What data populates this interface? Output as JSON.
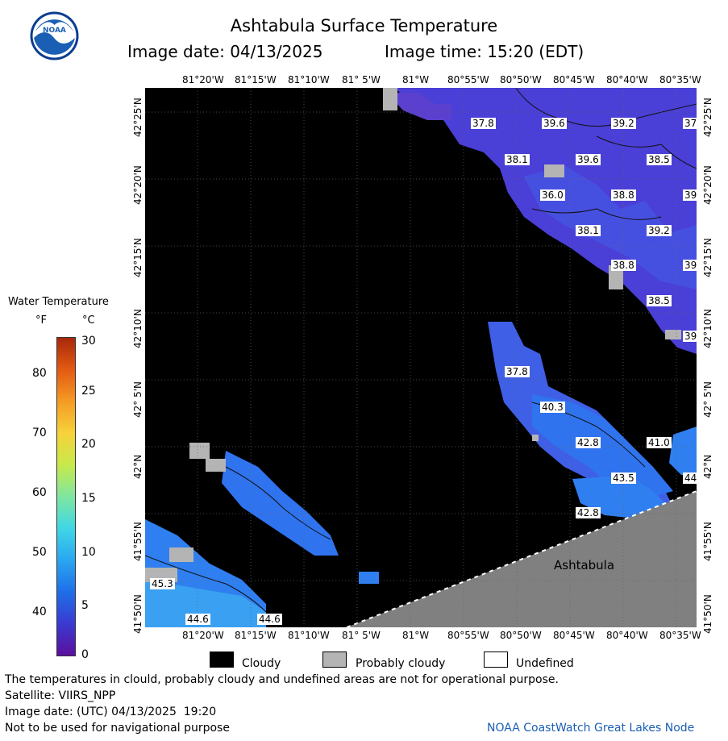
{
  "header": {
    "title": "Ashtabula Surface Temperature",
    "image_date_line": "Image date: 04/13/2025",
    "image_time_line": "Image time: 15:20 (EDT)"
  },
  "logo": {
    "text": "NOAA",
    "colors": {
      "outer": "#1a5fb4",
      "inner": "#ffffff",
      "ring": "#0a3d91"
    }
  },
  "axes": {
    "longitude_ticks": [
      "81°20'W",
      "81°15'W",
      "81°10'W",
      "81° 5'W",
      "81°W",
      "80°55'W",
      "80°50'W",
      "80°45'W",
      "80°40'W",
      "80°35'W"
    ],
    "latitude_ticks": [
      "42°25'N",
      "42°20'N",
      "42°15'N",
      "42°10'N",
      "42° 5'N",
      "42°N",
      "41°55'N",
      "41°50'N"
    ]
  },
  "colorbar": {
    "title": "Water Temperature",
    "unit_f": "°F",
    "unit_c": "°C",
    "f_ticks": [
      "80",
      "70",
      "60",
      "50",
      "40"
    ],
    "c_ticks": [
      "30",
      "25",
      "20",
      "15",
      "10",
      "5",
      "0"
    ],
    "gradient": [
      "#5b0f9e",
      "#3a3ad0",
      "#1f6fe8",
      "#2aa6f0",
      "#3fd7e6",
      "#7ee6a0",
      "#c8e94a",
      "#f7d23a",
      "#f59b24",
      "#e35a12",
      "#a8280c"
    ]
  },
  "map": {
    "place_label": "Ashtabula",
    "colors": {
      "cloudy": "#000000",
      "probably_cloudy": "#b4b4b4",
      "land": "#808080",
      "cold": "#4a3fd6",
      "mid": "#3f5fe6",
      "warm": "#2f7ff0"
    },
    "temperature_labels": [
      "37.8",
      "39.6",
      "39.2",
      "37",
      "38.1",
      "39.6",
      "38.5",
      "36.0",
      "38.8",
      "39",
      "38.1",
      "39.2",
      "38.8",
      "39",
      "38.5",
      "39",
      "37.8",
      "40.3",
      "42.8",
      "41.0",
      "43.5",
      "44",
      "42.8",
      "45.3",
      "44.6",
      "44.6"
    ]
  },
  "legend": {
    "cloudy": "Cloudy",
    "probably_cloudy": "Probably cloudy",
    "undefined": "Undefined"
  },
  "footer": {
    "line1": "The temperatures in clould, probably cloudy and undefined areas are not for operational purpose.",
    "line2": "Satellite: VIIRS_NPP",
    "line3": "Image date: (UTC) 04/13/2025  19:20",
    "line4": "Not to be used for navigational purpose",
    "credit": "NOAA CoastWatch Great Lakes Node"
  }
}
